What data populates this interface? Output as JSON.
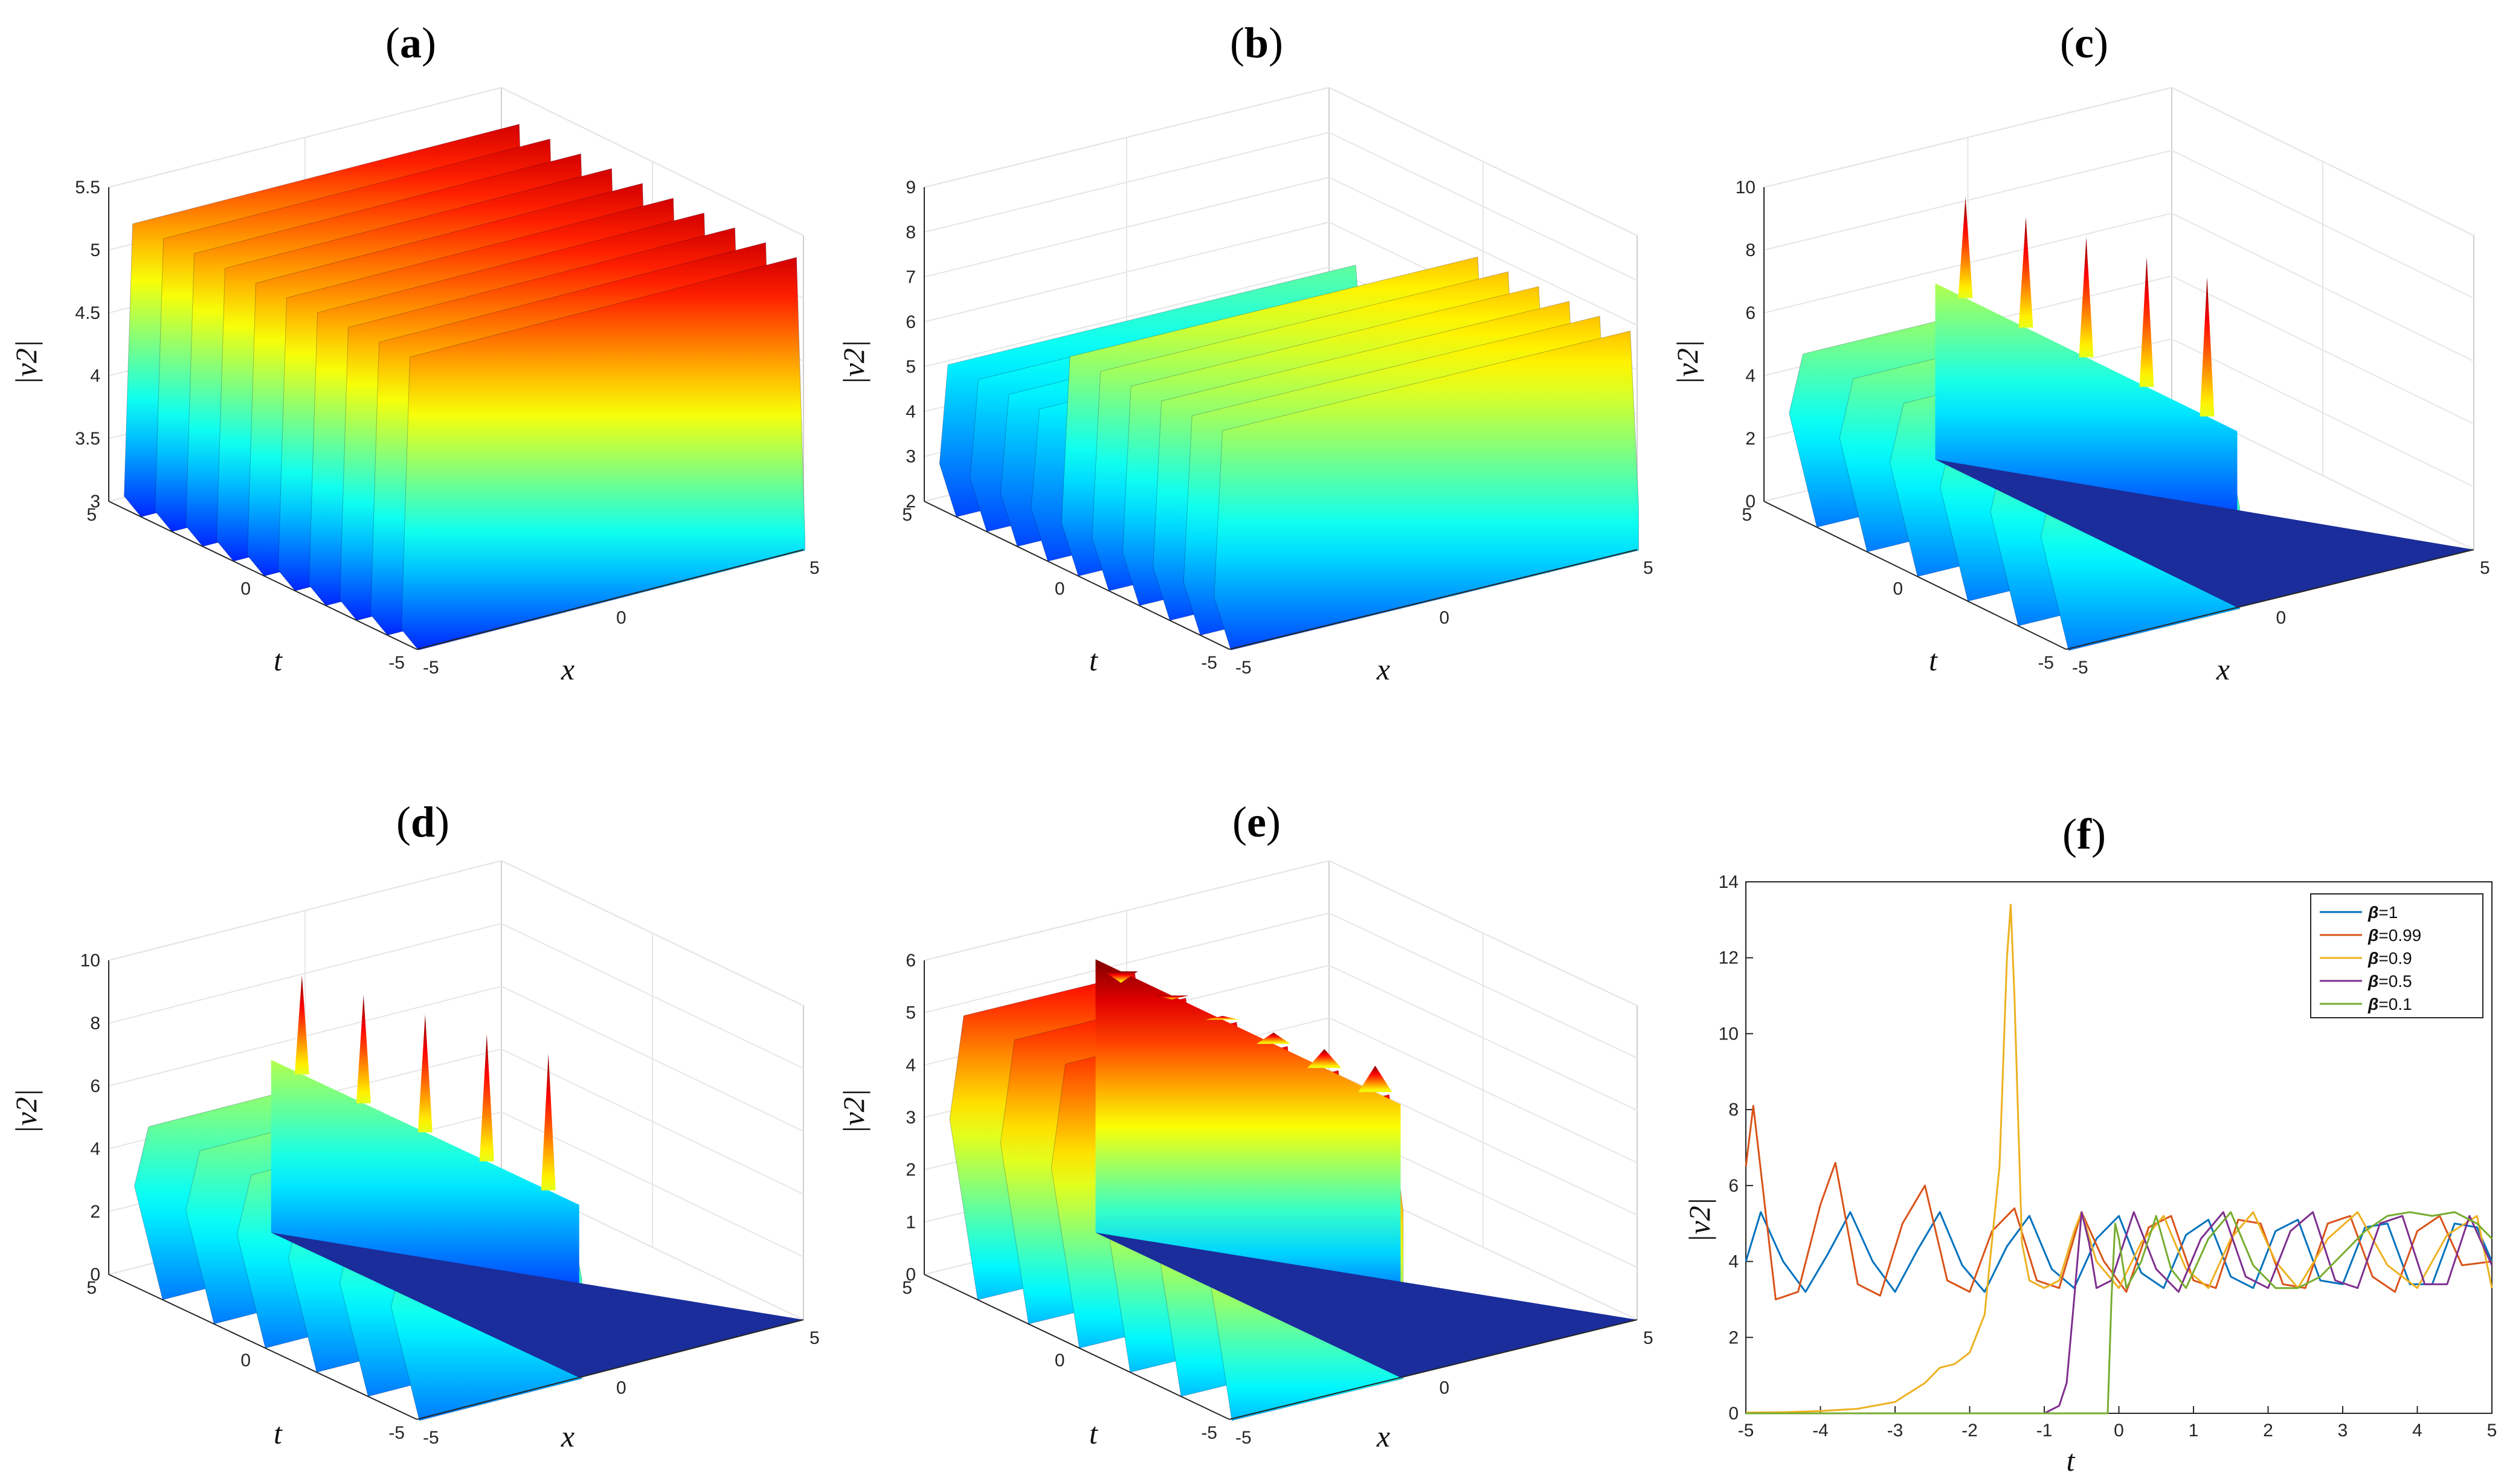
{
  "chart_data": [
    {
      "panel": "a",
      "type": "surface",
      "title_letter": "a",
      "zlabel": "|v2|",
      "xlabel": "x",
      "ylabel": "t",
      "xticks": [
        "-5",
        "0",
        "5"
      ],
      "tticks": [
        "-5",
        "0",
        "5"
      ],
      "zticks": [
        "3",
        "3.5",
        "4",
        "4.5",
        "5",
        "5.5"
      ],
      "zlim": [
        3,
        5.5
      ],
      "ridges": 10,
      "ridge_peak": 5.3,
      "ridge_base": 3.1,
      "colormap": "jet"
    },
    {
      "panel": "b",
      "type": "surface",
      "title_letter": "b",
      "zlabel": "|v2|",
      "xlabel": "x",
      "ylabel": "t",
      "xticks": [
        "-5",
        "0",
        "5"
      ],
      "tticks": [
        "-5",
        "0",
        "5"
      ],
      "zticks": [
        "2",
        "3",
        "4",
        "5",
        "6",
        "7",
        "8",
        "9"
      ],
      "zlim": [
        2,
        9
      ],
      "ridges": 10,
      "ridge_peak": 5.3,
      "ridge_base": 3.0,
      "front_peak": 6.8,
      "colormap": "jet"
    },
    {
      "panel": "c",
      "type": "surface",
      "title_letter": "c",
      "zlabel": "|v2|",
      "xlabel": "x",
      "ylabel": "t",
      "xticks": [
        "-5",
        "0",
        "5"
      ],
      "tticks": [
        "-5",
        "0",
        "5"
      ],
      "zticks": [
        "0",
        "2",
        "4",
        "6",
        "8",
        "10"
      ],
      "zlim": [
        0,
        10
      ],
      "ridges": 6,
      "ridge_peak": 5.3,
      "spike_peak": 10.2,
      "colormap": "jet"
    },
    {
      "panel": "d",
      "type": "surface",
      "title_letter": "d",
      "zlabel": "|v2|",
      "xlabel": "x",
      "ylabel": "t",
      "xticks": [
        "-5",
        "0",
        "5"
      ],
      "tticks": [
        "-5",
        "0",
        "5"
      ],
      "zticks": [
        "0",
        "2",
        "4",
        "6",
        "8",
        "10"
      ],
      "zlim": [
        0,
        10
      ],
      "ridges": 6,
      "ridge_peak": 5.3,
      "spike_peak": 10.0,
      "colormap": "jet"
    },
    {
      "panel": "e",
      "type": "surface",
      "title_letter": "e",
      "zlabel": "|v2|",
      "xlabel": "x",
      "ylabel": "t",
      "xticks": [
        "-5",
        "0",
        "5"
      ],
      "tticks": [
        "-5",
        "0",
        "5"
      ],
      "zticks": [
        "0",
        "1",
        "2",
        "3",
        "4",
        "5",
        "6"
      ],
      "zlim": [
        0,
        6
      ],
      "ridges": 6,
      "ridge_peak": 5.3,
      "spike_peak": 5.8,
      "colormap": "jet"
    },
    {
      "panel": "f",
      "type": "line",
      "title_letter": "f",
      "xlabel": "t",
      "ylabel": "|v2|",
      "xlim": [
        -5,
        5
      ],
      "ylim": [
        0,
        14
      ],
      "xticks": [
        "-5",
        "-4",
        "-3",
        "-2",
        "-1",
        "0",
        "1",
        "2",
        "3",
        "4",
        "5"
      ],
      "yticks": [
        "0",
        "2",
        "4",
        "6",
        "8",
        "10",
        "12",
        "14"
      ],
      "legend_position": "top-right",
      "series": [
        {
          "name": "β=1",
          "label_prefix": "β",
          "label_value": "=1",
          "color": "#0072BD",
          "x": [
            -5,
            -4.8,
            -4.5,
            -4.2,
            -3.9,
            -3.6,
            -3.3,
            -3.0,
            -2.7,
            -2.4,
            -2.1,
            -1.8,
            -1.5,
            -1.2,
            -0.9,
            -0.6,
            -0.3,
            0,
            0.3,
            0.6,
            0.9,
            1.2,
            1.5,
            1.8,
            2.1,
            2.4,
            2.7,
            3.0,
            3.3,
            3.6,
            3.9,
            4.2,
            4.5,
            4.8,
            5
          ],
          "y": [
            4.0,
            5.3,
            4.0,
            3.2,
            4.2,
            5.3,
            4.0,
            3.2,
            4.3,
            5.3,
            3.9,
            3.2,
            4.4,
            5.2,
            3.8,
            3.3,
            4.6,
            5.2,
            3.7,
            3.3,
            4.7,
            5.1,
            3.6,
            3.3,
            4.8,
            5.1,
            3.5,
            3.4,
            4.9,
            5.0,
            3.4,
            3.4,
            5.0,
            4.9,
            4.0
          ]
        },
        {
          "name": "β=0.99",
          "label_prefix": "β",
          "label_value": "=0.99",
          "color": "#D95319",
          "x": [
            -5,
            -4.9,
            -4.6,
            -4.3,
            -4.0,
            -3.8,
            -3.5,
            -3.2,
            -2.9,
            -2.6,
            -2.3,
            -2.0,
            -1.7,
            -1.4,
            -1.1,
            -0.8,
            -0.5,
            -0.2,
            0.1,
            0.4,
            0.7,
            1.0,
            1.3,
            1.6,
            1.9,
            2.2,
            2.5,
            2.8,
            3.1,
            3.4,
            3.7,
            4.0,
            4.3,
            4.6,
            5
          ],
          "y": [
            6.5,
            8.1,
            3.0,
            3.2,
            5.5,
            6.6,
            3.4,
            3.1,
            5.0,
            6.0,
            3.5,
            3.2,
            4.8,
            5.4,
            3.5,
            3.3,
            5.3,
            4.0,
            3.2,
            4.9,
            5.2,
            3.5,
            3.3,
            5.1,
            5.0,
            3.4,
            3.3,
            5.0,
            5.2,
            3.6,
            3.2,
            4.8,
            5.2,
            3.9,
            4.0
          ]
        },
        {
          "name": "β=0.9",
          "label_prefix": "β",
          "label_value": "=0.9",
          "color": "#EDB120",
          "x": [
            -5,
            -4.5,
            -4.0,
            -3.5,
            -3.0,
            -2.6,
            -2.4,
            -2.2,
            -2.0,
            -1.8,
            -1.6,
            -1.5,
            -1.45,
            -1.4,
            -1.3,
            -1.2,
            -1.0,
            -0.8,
            -0.6,
            -0.5,
            -0.3,
            0,
            0.3,
            0.6,
            0.9,
            1.2,
            1.5,
            1.8,
            2.1,
            2.4,
            2.8,
            3.2,
            3.6,
            4.0,
            4.4,
            4.8,
            5
          ],
          "y": [
            0.02,
            0.03,
            0.06,
            0.12,
            0.3,
            0.8,
            1.2,
            1.3,
            1.6,
            2.6,
            6.5,
            12.0,
            13.4,
            11.0,
            4.5,
            3.5,
            3.3,
            3.5,
            4.8,
            5.3,
            4.0,
            3.3,
            4.5,
            5.2,
            3.8,
            3.3,
            4.6,
            5.3,
            4.0,
            3.3,
            4.6,
            5.3,
            3.9,
            3.3,
            4.7,
            5.2,
            3.3
          ]
        },
        {
          "name": "β=0.5",
          "label_prefix": "β",
          "label_value": "=0.5",
          "color": "#7E2F8E",
          "x": [
            -5,
            -3,
            -1.0,
            -0.8,
            -0.7,
            -0.6,
            -0.5,
            -0.4,
            -0.3,
            -0.1,
            0.2,
            0.5,
            0.8,
            1.1,
            1.4,
            1.7,
            2.0,
            2.3,
            2.6,
            2.9,
            3.2,
            3.5,
            3.8,
            4.1,
            4.4,
            4.7,
            5
          ],
          "y": [
            0,
            0,
            0,
            0.2,
            0.8,
            3.0,
            5.3,
            4.5,
            3.3,
            3.5,
            5.3,
            3.8,
            3.2,
            4.6,
            5.3,
            3.6,
            3.3,
            4.8,
            5.3,
            3.5,
            3.3,
            5.0,
            5.2,
            3.4,
            3.4,
            5.2,
            3.9
          ]
        },
        {
          "name": "β=0.1",
          "label_prefix": "β",
          "label_value": "=0.1",
          "color": "#77AC30",
          "x": [
            -5,
            -3,
            -1,
            -0.15,
            -0.1,
            -0.05,
            0,
            0.1,
            0.3,
            0.5,
            0.7,
            0.9,
            1.2,
            1.5,
            1.8,
            2.1,
            2.4,
            2.7,
            3.0,
            3.3,
            3.6,
            3.9,
            4.2,
            4.5,
            4.8,
            5
          ],
          "y": [
            0,
            0,
            0,
            0,
            3.0,
            5.0,
            4.6,
            3.3,
            4.0,
            5.2,
            3.8,
            3.3,
            4.6,
            5.3,
            3.9,
            3.3,
            3.3,
            3.6,
            4.2,
            4.8,
            5.2,
            5.3,
            5.2,
            5.3,
            5.0,
            4.6
          ]
        }
      ]
    }
  ]
}
